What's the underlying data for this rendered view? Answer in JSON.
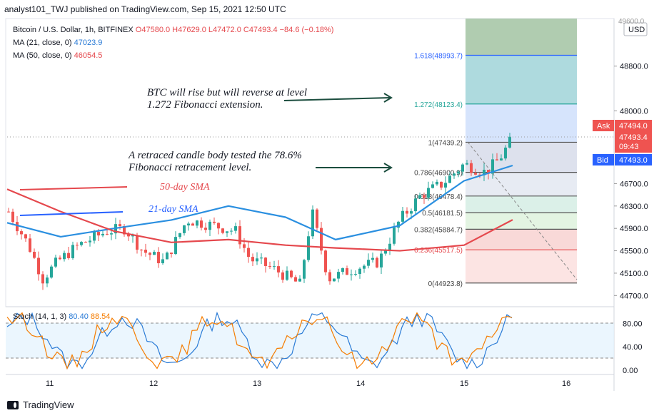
{
  "header": {
    "publisher": "analyst101_TWJ published on TradingView.com, Sep 15, 2021 12:50 UTC"
  },
  "legend": {
    "symbol": "Bitcoin / U.S. Dollar, 1h, BITFINEX",
    "ohlc": "O47580.0  H47629.0  L47472.0  C47493.4  −84.6 (−0.18%)",
    "ma21_label": "MA (21, close, 0)",
    "ma21_value": "47023.9",
    "ma50_label": "MA (50, close, 0)",
    "ma50_value": "46054.5",
    "stoch_label": "Stoch (14, 1, 3)",
    "stoch_k": "80.40",
    "stoch_d": "88.54"
  },
  "price_axis": {
    "currency": "USD",
    "ticks": [
      "48800.0",
      "48000.0",
      "46700.0",
      "46300.0",
      "45900.0",
      "45500.0",
      "45100.0",
      "44700.0"
    ],
    "top_partial": "49600.0"
  },
  "stoch_axis": {
    "ticks": [
      "80.00",
      "40.00",
      "0.00"
    ]
  },
  "time_axis": {
    "ticks": [
      "11",
      "12",
      "13",
      "14",
      "15",
      "16"
    ]
  },
  "price_tags": {
    "ask_label": "Ask",
    "ask_value": "47494.0",
    "last_value": "47493.4",
    "countdown": "09:43",
    "bid_label": "Bid",
    "bid_value": "47493.0"
  },
  "fib_levels": [
    {
      "label": "1.618(48993.7)",
      "price": 48993.7,
      "line_color": "#2962ff"
    },
    {
      "label": "1.272(48123.4)",
      "price": 48123.4,
      "line_color": "#26a69a"
    },
    {
      "label": "1(47439.2)",
      "price": 47439.2,
      "line_color": "#555555"
    },
    {
      "label": "0.786(46900.9)",
      "price": 46900.9,
      "line_color": "#555555"
    },
    {
      "label": "0.618(46478.4)",
      "price": 46478.4,
      "line_color": "#555555"
    },
    {
      "label": "0.5(46181.5)",
      "price": 46181.5,
      "line_color": "#555555"
    },
    {
      "label": "0.382(45884.7)",
      "price": 45884.7,
      "line_color": "#555555"
    },
    {
      "label": "0.236(45517.5)",
      "price": 45517.5,
      "line_color": "#e5484d"
    },
    {
      "label": "0(44923.8)",
      "price": 44923.8,
      "line_color": "#555555"
    }
  ],
  "annotations": {
    "note1_line1": "BTC will rise but will reverse at level",
    "note1_line2": "1.272 Fibonacci extension.",
    "note2_line1": "A retraced candle body tested the 78.6%",
    "note2_line2": "Fibonacci retracement level.",
    "sma50": "50-day SMA",
    "sma21": "21-day SMA"
  },
  "footer": {
    "brand": "TradingView"
  },
  "colors": {
    "up": "#26a69a",
    "down": "#ef5350",
    "ma21": "#2a8fe0",
    "ma50": "#e5484d",
    "stoch_k": "#2a7bd6",
    "stoch_d": "#f57c00"
  },
  "chart_data": {
    "type": "line",
    "title": "Bitcoin / U.S. Dollar, 1h, BITFINEX",
    "x": [
      "11",
      "11.5",
      "12",
      "12.5",
      "13",
      "13.5",
      "14",
      "14.5",
      "15",
      "15.5"
    ],
    "series": [
      {
        "name": "MA (21, close, 0)",
        "values": [
          46000,
          45750,
          45900,
          46050,
          46300,
          46100,
          45700,
          45950,
          46750,
          47024
        ]
      },
      {
        "name": "MA (50, close, 0)",
        "values": [
          46600,
          46200,
          45850,
          45650,
          45700,
          45600,
          45550,
          45500,
          45600,
          46054
        ]
      }
    ],
    "ylim": [
      44500,
      49650
    ],
    "last_close": 47493.4
  }
}
